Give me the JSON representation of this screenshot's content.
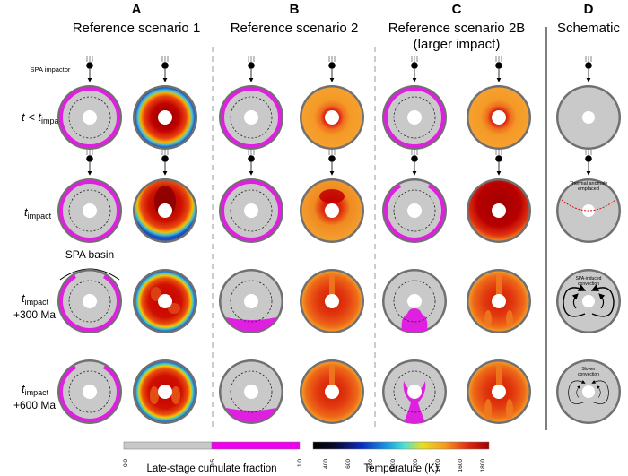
{
  "columns": [
    {
      "letter": "A",
      "title": "Reference scenario 1",
      "subtitle": ""
    },
    {
      "letter": "B",
      "title": "Reference scenario 2",
      "subtitle": ""
    },
    {
      "letter": "C",
      "title": "Reference scenario 2B",
      "subtitle": "(larger impact)"
    },
    {
      "letter": "D",
      "title": "Schematic",
      "subtitle": ""
    }
  ],
  "rows": [
    {
      "label_main": "t < t",
      "label_sub": "impact",
      "label_line2": ""
    },
    {
      "label_main": "t",
      "label_sub": "impact",
      "label_line2": ""
    },
    {
      "label_main": "t",
      "label_sub": "impact",
      "label_line2": "+300 Ma"
    },
    {
      "label_main": "t",
      "label_sub": "impact",
      "label_line2": "+600 Ma"
    }
  ],
  "annotations": {
    "impactor": "SPA impactor",
    "basin": "SPA basin",
    "thermal_anomaly_line1": "Thermal anomaly",
    "thermal_anomaly_line2": "emplaced",
    "convection_row3_line1": "SPA-induced",
    "convection_row3_line2": "convection",
    "convection_row4_line1": "Slower",
    "convection_row4_line2": "convection"
  },
  "colorbars": {
    "cumulate": {
      "label": "Late-stage cumulate fraction",
      "ticks": [
        "0.0",
        "0.5",
        "1.0"
      ],
      "colors": {
        "low": "#c8c8c8",
        "high": "#ee00ee"
      }
    },
    "temperature": {
      "label": "Temperature (K)",
      "ticks": [
        "400",
        "600",
        "800",
        "1000",
        "1200",
        "1400",
        "1600",
        "1800"
      ]
    }
  },
  "colors": {
    "mantle_gray": "#c9c9c9",
    "shell_gray": "#707070",
    "magenta": "#e020e0",
    "hot_dark": "#b00000",
    "hot": "#e0301a",
    "warm": "#f39a25",
    "cool_blue": "#1d6fd8",
    "cyan": "#33cccc"
  }
}
